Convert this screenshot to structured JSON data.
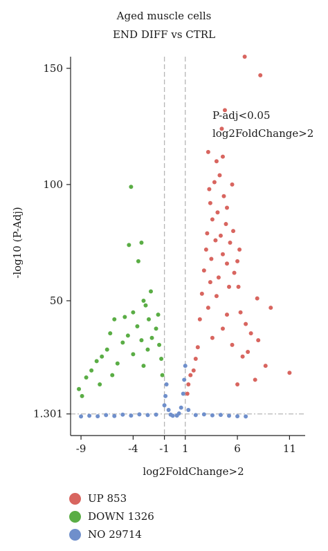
{
  "chart_data": {
    "type": "scatter",
    "title_line1": "Aged muscle cells",
    "title_line2": "END DIFF vs CTRL",
    "xlabel": "log2FoldChange>2",
    "ylabel": "-log10 (P-Adj)",
    "xlim": [
      -10,
      12.5
    ],
    "ylim": [
      -8,
      155
    ],
    "x_ticks": [
      -9,
      -4,
      -1,
      1,
      6,
      11
    ],
    "x_tick_labels": [
      "-9",
      "-4",
      "-1",
      "1",
      "6",
      "11"
    ],
    "y_ticks": [
      1.301,
      50,
      100,
      150
    ],
    "y_tick_labels": [
      "1.301",
      "50",
      "100",
      "150"
    ],
    "thresholds": {
      "x": [
        -1,
        1
      ],
      "y": 1.301
    },
    "annotation": [
      "P-adj<0.05",
      "log2FoldChange>2"
    ],
    "legend_position": "bottom-left",
    "grid": false,
    "series": [
      {
        "name": "UP 853",
        "color": "#d8655f",
        "points": [
          [
            6.7,
            155
          ],
          [
            8.2,
            147
          ],
          [
            4.8,
            132
          ],
          [
            4.5,
            124
          ],
          [
            3.2,
            114
          ],
          [
            4.6,
            112
          ],
          [
            4.0,
            110
          ],
          [
            4.3,
            104
          ],
          [
            3.8,
            101
          ],
          [
            5.5,
            100
          ],
          [
            3.3,
            98
          ],
          [
            4.7,
            95
          ],
          [
            3.4,
            92
          ],
          [
            5.0,
            90
          ],
          [
            4.1,
            88
          ],
          [
            3.6,
            85
          ],
          [
            4.9,
            83
          ],
          [
            5.6,
            80
          ],
          [
            3.1,
            79
          ],
          [
            4.4,
            78
          ],
          [
            3.9,
            76
          ],
          [
            5.3,
            75
          ],
          [
            3.0,
            72
          ],
          [
            6.2,
            72
          ],
          [
            4.6,
            70
          ],
          [
            3.5,
            68
          ],
          [
            6.0,
            67
          ],
          [
            5.0,
            66
          ],
          [
            2.8,
            63
          ],
          [
            5.7,
            62
          ],
          [
            4.2,
            60
          ],
          [
            3.4,
            58
          ],
          [
            6.1,
            56
          ],
          [
            5.2,
            56
          ],
          [
            2.6,
            53
          ],
          [
            4.0,
            52
          ],
          [
            7.9,
            51
          ],
          [
            9.2,
            47
          ],
          [
            3.2,
            47
          ],
          [
            6.3,
            45
          ],
          [
            5.0,
            44
          ],
          [
            2.4,
            42
          ],
          [
            6.8,
            40
          ],
          [
            4.6,
            38
          ],
          [
            7.3,
            36
          ],
          [
            3.6,
            34
          ],
          [
            8.0,
            33
          ],
          [
            5.5,
            31
          ],
          [
            2.2,
            30
          ],
          [
            7.0,
            28
          ],
          [
            6.5,
            26
          ],
          [
            8.7,
            22
          ],
          [
            11.0,
            19
          ],
          [
            7.7,
            16
          ],
          [
            6.0,
            14
          ],
          [
            2.0,
            25
          ],
          [
            1.8,
            20
          ],
          [
            1.5,
            18
          ],
          [
            1.3,
            14
          ],
          [
            1.2,
            10
          ]
        ]
      },
      {
        "name": "DOWN 1326",
        "color": "#5aad45",
        "points": [
          [
            -4.2,
            99
          ],
          [
            -3.2,
            75
          ],
          [
            -4.4,
            74
          ],
          [
            -3.5,
            67
          ],
          [
            -2.3,
            54
          ],
          [
            -3.0,
            50
          ],
          [
            -2.8,
            48
          ],
          [
            -4.0,
            45
          ],
          [
            -1.6,
            44
          ],
          [
            -4.8,
            43
          ],
          [
            -2.5,
            42
          ],
          [
            -5.8,
            42
          ],
          [
            -3.6,
            39
          ],
          [
            -1.8,
            38
          ],
          [
            -6.2,
            36
          ],
          [
            -4.5,
            35
          ],
          [
            -2.2,
            34
          ],
          [
            -3.2,
            33
          ],
          [
            -5.0,
            32
          ],
          [
            -1.5,
            31
          ],
          [
            -6.5,
            29
          ],
          [
            -2.6,
            29
          ],
          [
            -7.0,
            26
          ],
          [
            -4.0,
            27
          ],
          [
            -1.3,
            25
          ],
          [
            -7.5,
            24
          ],
          [
            -5.5,
            23
          ],
          [
            -8.0,
            20
          ],
          [
            -8.5,
            17
          ],
          [
            -9.2,
            12
          ],
          [
            -8.9,
            9
          ],
          [
            -7.2,
            14
          ],
          [
            -6.0,
            18
          ],
          [
            -3.0,
            22
          ],
          [
            -1.2,
            18
          ]
        ]
      },
      {
        "name": "NO 29714",
        "color": "#6f8fcb",
        "points": [
          [
            -9.0,
            0.2
          ],
          [
            -8.2,
            0.5
          ],
          [
            -7.4,
            0.3
          ],
          [
            -6.6,
            0.8
          ],
          [
            -5.8,
            0.4
          ],
          [
            -5.0,
            1.0
          ],
          [
            -4.2,
            0.6
          ],
          [
            -3.4,
            1.1
          ],
          [
            -2.6,
            0.8
          ],
          [
            -1.8,
            1.0
          ],
          [
            -1.0,
            5
          ],
          [
            -0.9,
            9
          ],
          [
            -0.8,
            14
          ],
          [
            -0.6,
            3
          ],
          [
            -0.4,
            1
          ],
          [
            -0.2,
            0.5
          ],
          [
            0.2,
            0.6
          ],
          [
            0.4,
            1.5
          ],
          [
            0.6,
            4
          ],
          [
            0.8,
            10
          ],
          [
            0.9,
            16
          ],
          [
            1.0,
            22
          ],
          [
            1.3,
            3
          ],
          [
            2.0,
            0.8
          ],
          [
            2.8,
            1.1
          ],
          [
            3.6,
            0.7
          ],
          [
            4.4,
            0.9
          ],
          [
            5.2,
            0.5
          ],
          [
            6.0,
            0.3
          ],
          [
            6.8,
            0.2
          ]
        ]
      }
    ]
  }
}
